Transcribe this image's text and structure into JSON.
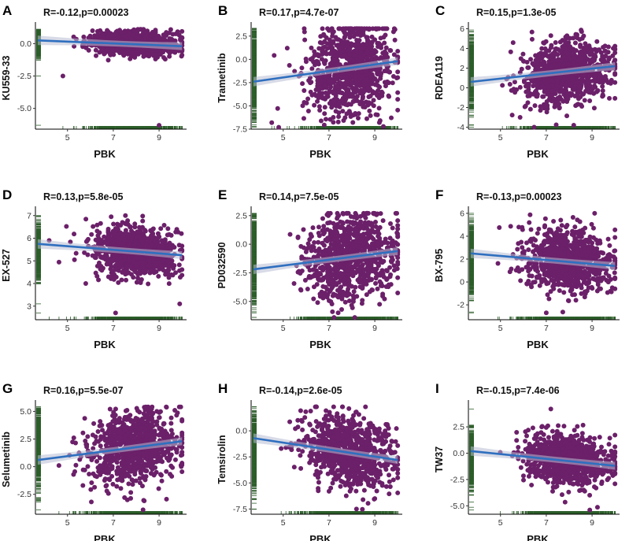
{
  "figure": {
    "background": "#ffffff"
  },
  "colors": {
    "point": "#6b2069",
    "line": "#2f6fbf",
    "band": "#b8bed3",
    "rug": "#2c5e2a",
    "axis": "#000000"
  },
  "chart_data": [
    {
      "type": "scatter",
      "panel": "A",
      "title": "R=-0.12,p=0.00023",
      "xlabel": "PBK",
      "ylabel": "KU559-33",
      "xlim": [
        3.6,
        10.2
      ],
      "ylim": [
        -6.6,
        1.3
      ],
      "xticks": [
        5,
        7,
        9
      ],
      "xtick_labels": [
        "5",
        "7",
        "9"
      ],
      "yticks": [
        -5.0,
        -2.5,
        0.0
      ],
      "ytick_labels": [
        "-5.0",
        "-2.5",
        "0.0"
      ],
      "fit": {
        "x": [
          3.7,
          10.0
        ],
        "y": [
          0.25,
          -0.2
        ]
      },
      "points_summary": {
        "n": 900,
        "x_center": 7.9,
        "y_center": 0.0,
        "y_spread": 0.45,
        "x_min": 3.7,
        "x_max": 10.0,
        "outliers": [
          [
            4.8,
            -2.5
          ],
          [
            9.0,
            -6.3
          ],
          [
            5.7,
            0.1
          ]
        ]
      }
    },
    {
      "type": "scatter",
      "panel": "B",
      "title": "R=0.17,p=4.7e-07",
      "xlabel": "PBK",
      "ylabel": "Trametinib",
      "xlim": [
        3.6,
        10.2
      ],
      "ylim": [
        -7.5,
        3.5
      ],
      "xticks": [
        5,
        7,
        9
      ],
      "xtick_labels": [
        "5",
        "7",
        "9"
      ],
      "yticks": [
        -7.5,
        -5.0,
        -2.5,
        0.0,
        2.5
      ],
      "ytick_labels": [
        "-7.5",
        "-5.0",
        "-2.5",
        "0.0",
        "2.5"
      ],
      "fit": {
        "x": [
          3.7,
          10.0
        ],
        "y": [
          -2.4,
          -0.2
        ]
      },
      "points_summary": {
        "n": 900,
        "x_center": 7.9,
        "y_center": -1.2,
        "y_spread": 2.4,
        "x_min": 3.7,
        "x_max": 10.0,
        "outliers": [
          [
            7.0,
            3.1
          ],
          [
            4.5,
            -6.8
          ]
        ]
      }
    },
    {
      "type": "scatter",
      "panel": "C",
      "title": "R=0.15,p=1.3e-05",
      "xlabel": "PBK",
      "ylabel": "RDEA119",
      "xlim": [
        3.6,
        10.2
      ],
      "ylim": [
        -4.2,
        6.2
      ],
      "xticks": [
        5,
        7,
        9
      ],
      "xtick_labels": [
        "5",
        "7",
        "9"
      ],
      "yticks": [
        -4,
        -2,
        0,
        2,
        4,
        6
      ],
      "ytick_labels": [
        "-4",
        "-2",
        "0",
        "2",
        "4",
        "6"
      ],
      "fit": {
        "x": [
          3.7,
          10.0
        ],
        "y": [
          0.6,
          2.2
        ]
      },
      "points_summary": {
        "n": 900,
        "x_center": 7.9,
        "y_center": 1.6,
        "y_spread": 1.6,
        "x_min": 3.8,
        "x_max": 10.0,
        "outliers": [
          [
            8.2,
            -3.8
          ],
          [
            7.2,
            5.3
          ]
        ]
      }
    },
    {
      "type": "scatter",
      "panel": "D",
      "title": "R=0.13,p=5.8e-05",
      "xlabel": "PBK",
      "ylabel": "EX-527",
      "xlim": [
        3.6,
        10.2
      ],
      "ylim": [
        2.4,
        7.2
      ],
      "xticks": [
        5,
        7,
        9
      ],
      "xtick_labels": [
        "5",
        "7",
        "9"
      ],
      "yticks": [
        3,
        4,
        5,
        6,
        7
      ],
      "ytick_labels": [
        "3",
        "4",
        "5",
        "6",
        "7"
      ],
      "fit": {
        "x": [
          3.7,
          10.0
        ],
        "y": [
          5.75,
          5.25
        ]
      },
      "points_summary": {
        "n": 900,
        "x_center": 7.9,
        "y_center": 5.4,
        "y_spread": 0.55,
        "x_min": 3.7,
        "x_max": 10.0,
        "outliers": [
          [
            7.1,
            2.7
          ],
          [
            9.9,
            3.1
          ],
          [
            4.2,
            5.9
          ]
        ]
      }
    },
    {
      "type": "scatter",
      "panel": "E",
      "title": "R=0.14,p=7.5e-05",
      "xlabel": "PBK",
      "ylabel": "PD032590",
      "xlim": [
        3.6,
        10.2
      ],
      "ylim": [
        -6.6,
        2.9
      ],
      "xticks": [
        5,
        7,
        9
      ],
      "xtick_labels": [
        "5",
        "7",
        "9"
      ],
      "yticks": [
        -5.0,
        -2.5,
        0.0,
        2.5
      ],
      "ytick_labels": [
        "-5.0",
        "-2.5",
        "0.0",
        "2.5"
      ],
      "fit": {
        "x": [
          3.7,
          10.0
        ],
        "y": [
          -2.2,
          -0.6
        ]
      },
      "points_summary": {
        "n": 900,
        "x_center": 7.9,
        "y_center": -1.1,
        "y_spread": 1.9,
        "x_min": 3.7,
        "x_max": 10.0,
        "outliers": [
          [
            7.4,
            -6.0
          ],
          [
            8.6,
            2.3
          ]
        ]
      }
    },
    {
      "type": "scatter",
      "panel": "F",
      "title": "R=-0.13,p=0.00023",
      "xlabel": "PBK",
      "ylabel": "BX-795",
      "xlim": [
        3.6,
        10.2
      ],
      "ylim": [
        -3.3,
        6.2
      ],
      "xticks": [
        5,
        7,
        9
      ],
      "xtick_labels": [
        "5",
        "7",
        "9"
      ],
      "yticks": [
        -2,
        0,
        2,
        4,
        6
      ],
      "ytick_labels": [
        "-2",
        "0",
        "2",
        "4",
        "6"
      ],
      "fit": {
        "x": [
          3.7,
          10.0
        ],
        "y": [
          2.5,
          1.4
        ]
      },
      "points_summary": {
        "n": 900,
        "x_center": 7.9,
        "y_center": 1.9,
        "y_spread": 1.3,
        "x_min": 3.7,
        "x_max": 10.0,
        "outliers": [
          [
            7.0,
            -2.7
          ],
          [
            5.8,
            4.8
          ]
        ]
      }
    },
    {
      "type": "scatter",
      "panel": "G",
      "title": "R=0.16,p=5.5e-07",
      "xlabel": "PBK",
      "ylabel": "Selumetinib",
      "xlim": [
        3.6,
        10.2
      ],
      "ylim": [
        -4.3,
        5.6
      ],
      "xticks": [
        5,
        7,
        9
      ],
      "xtick_labels": [
        "5",
        "7",
        "9"
      ],
      "yticks": [
        -2.5,
        0.0,
        2.5,
        5.0
      ],
      "ytick_labels": [
        "-2.5",
        "0.0",
        "2.5",
        "5.0"
      ],
      "fit": {
        "x": [
          3.7,
          10.0
        ],
        "y": [
          0.6,
          2.3
        ]
      },
      "points_summary": {
        "n": 900,
        "x_center": 7.9,
        "y_center": 1.6,
        "y_spread": 1.6,
        "x_min": 3.7,
        "x_max": 10.0,
        "outliers": [
          [
            7.6,
            5.1
          ],
          [
            8.3,
            -3.9
          ]
        ]
      }
    },
    {
      "type": "scatter",
      "panel": "H",
      "title": "R=-0.14,p=2.6e-05",
      "xlabel": "PBK",
      "ylabel": "Temsirolin",
      "xlim": [
        3.6,
        10.2
      ],
      "ylim": [
        -8.0,
        2.5
      ],
      "xticks": [
        5,
        7,
        9
      ],
      "xtick_labels": [
        "5",
        "7",
        "9"
      ],
      "yticks": [
        -7.5,
        -5.0,
        -2.5,
        0.0
      ],
      "ytick_labels": [
        "-7.5",
        "-5.0",
        "-2.5",
        "0.0"
      ],
      "fit": {
        "x": [
          3.7,
          10.0
        ],
        "y": [
          -0.7,
          -2.8
        ]
      },
      "points_summary": {
        "n": 900,
        "x_center": 7.9,
        "y_center": -2.0,
        "y_spread": 1.7,
        "x_min": 3.7,
        "x_max": 10.0,
        "outliers": [
          [
            6.2,
            1.9
          ],
          [
            8.2,
            -7.5
          ]
        ]
      }
    },
    {
      "type": "scatter",
      "panel": "I",
      "title": "R=-0.15,p=7.4e-06",
      "xlabel": "PBK",
      "ylabel": "TW37",
      "xlim": [
        3.6,
        10.2
      ],
      "ylim": [
        -5.8,
        4.6
      ],
      "xticks": [
        5,
        7,
        9
      ],
      "xtick_labels": [
        "5",
        "7",
        "9"
      ],
      "yticks": [
        -5.0,
        -2.5,
        0.0,
        2.5
      ],
      "ytick_labels": [
        "-5.0",
        "-2.5",
        "0.0",
        "2.5"
      ],
      "fit": {
        "x": [
          3.7,
          10.0
        ],
        "y": [
          0.2,
          -1.2
        ]
      },
      "points_summary": {
        "n": 900,
        "x_center": 7.9,
        "y_center": -0.7,
        "y_spread": 1.2,
        "x_min": 3.7,
        "x_max": 10.0,
        "outliers": [
          [
            7.2,
            4.2
          ],
          [
            8.9,
            -5.4
          ]
        ]
      }
    }
  ]
}
